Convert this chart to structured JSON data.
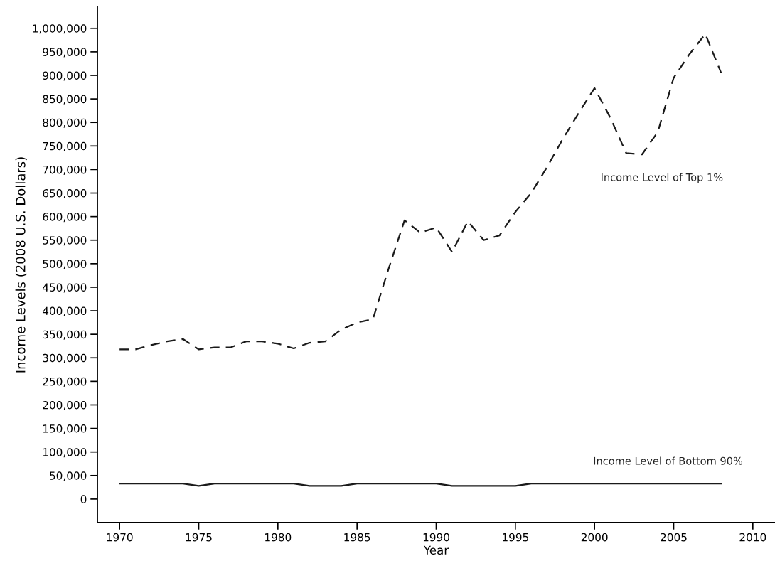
{
  "chart_data": {
    "type": "line",
    "xlabel": "Year",
    "ylabel": "Income Levels (2008 U.S. Dollars)",
    "x": [
      1970,
      1971,
      1972,
      1973,
      1974,
      1975,
      1976,
      1977,
      1978,
      1979,
      1980,
      1981,
      1982,
      1983,
      1984,
      1985,
      1986,
      1987,
      1988,
      1989,
      1990,
      1991,
      1992,
      1993,
      1994,
      1995,
      1996,
      1997,
      1998,
      1999,
      2000,
      2001,
      2002,
      2003,
      2004,
      2005,
      2006,
      2007,
      2008
    ],
    "series": [
      {
        "name": "Income Level of Top 1%",
        "color": "#1a1a1a",
        "line_style": "dashed",
        "values": [
          318000,
          318000,
          327000,
          335000,
          340000,
          318000,
          322000,
          322000,
          335000,
          335000,
          330000,
          320000,
          332000,
          335000,
          360000,
          375000,
          382000,
          490000,
          592000,
          566000,
          577000,
          525000,
          590000,
          550000,
          560000,
          610000,
          650000,
          705000,
          765000,
          820000,
          873000,
          810000,
          735000,
          732000,
          780000,
          895000,
          945000,
          988000,
          905000
        ]
      },
      {
        "name": "Income Level of Bottom 90%",
        "color": "#1a1a1a",
        "line_style": "solid",
        "values": [
          33000,
          33000,
          33000,
          33000,
          33000,
          28000,
          33000,
          33000,
          33000,
          33000,
          33000,
          33000,
          28000,
          28000,
          28000,
          33000,
          33000,
          33000,
          33000,
          33000,
          33000,
          28000,
          28000,
          28000,
          28000,
          28000,
          33000,
          33000,
          33000,
          33000,
          33000,
          33000,
          33000,
          33000,
          33000,
          33000,
          33000,
          33000,
          33000
        ]
      }
    ],
    "xlim": [
      1968.6,
      2011.4
    ],
    "xticks": [
      1970,
      1975,
      1980,
      1985,
      1990,
      1995,
      2000,
      2005,
      2010
    ],
    "ylim": [
      -50000,
      1045000
    ],
    "yticks": [
      {
        "value": 0,
        "label": "0"
      },
      {
        "value": 50000,
        "label": "50,000"
      },
      {
        "value": 100000,
        "label": "100,000"
      },
      {
        "value": 150000,
        "label": "150,000"
      },
      {
        "value": 200000,
        "label": "200,000"
      },
      {
        "value": 250000,
        "label": "250,000"
      },
      {
        "value": 300000,
        "label": "300,000"
      },
      {
        "value": 350000,
        "label": "350,000"
      },
      {
        "value": 400000,
        "label": "400,000"
      },
      {
        "value": 450000,
        "label": "450,000"
      },
      {
        "value": 500000,
        "label": "500,000"
      },
      {
        "value": 550000,
        "label": "550,000"
      },
      {
        "value": 600000,
        "label": "600,000"
      },
      {
        "value": 650000,
        "label": "650,000"
      },
      {
        "value": 700000,
        "label": "700,000"
      },
      {
        "value": 750000,
        "label": "750,000"
      },
      {
        "value": 800000,
        "label": "800,000"
      },
      {
        "value": 850000,
        "label": "850,000"
      },
      {
        "value": 900000,
        "label": "900,000"
      },
      {
        "value": 950000,
        "label": "950,000"
      },
      {
        "value": 1000000,
        "label": "1,000,000"
      }
    ],
    "grid": false,
    "legend": false,
    "marker": "none"
  }
}
